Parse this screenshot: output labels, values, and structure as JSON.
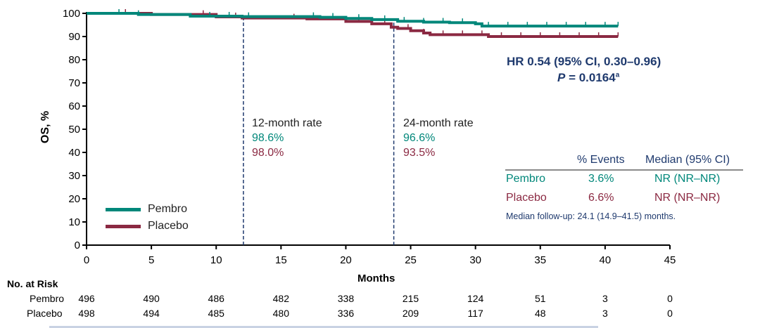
{
  "chart_data": {
    "type": "line",
    "subtype": "kaplan-meier",
    "ylabel": "OS, %",
    "xlabel": "Months",
    "xlim": [
      0,
      45
    ],
    "ylim": [
      0,
      100
    ],
    "xticks": [
      0,
      5,
      10,
      15,
      20,
      25,
      30,
      35,
      40,
      45
    ],
    "yticks": [
      0,
      10,
      20,
      30,
      40,
      50,
      60,
      70,
      80,
      90,
      100
    ],
    "grid": false,
    "legend_position": "bottom-left",
    "colors": {
      "pembro": "#00877a",
      "placebo": "#8b2942",
      "annotation": "#1f3a6e"
    },
    "series": [
      {
        "name": "Pembro",
        "color": "#00877a",
        "x": [
          0,
          4,
          8,
          12,
          15,
          18,
          20,
          22,
          24,
          26,
          28,
          30,
          30.5,
          41
        ],
        "y": [
          100,
          99.5,
          98.8,
          98.6,
          98.6,
          98.3,
          97.8,
          97.3,
          96.6,
          96.2,
          96.0,
          95.5,
          94.5,
          94.5
        ],
        "censor_x": [
          2.5,
          4,
          9.5,
          11,
          12.5,
          17.5,
          19,
          21,
          23,
          24.5,
          26,
          27.5,
          29,
          31,
          32.5,
          34,
          35.5,
          37,
          38.5,
          40,
          41
        ]
      },
      {
        "name": "Placebo",
        "color": "#8b2942",
        "x": [
          0,
          5,
          10,
          12,
          17,
          20,
          22,
          23.5,
          24,
          25,
          26,
          26.5,
          30,
          31,
          41
        ],
        "y": [
          100,
          99.5,
          98.5,
          98.0,
          97.6,
          96.5,
          95.5,
          94.0,
          93.5,
          92.5,
          91.5,
          90.8,
          90.8,
          90.0,
          90.0
        ],
        "censor_x": [
          3,
          9,
          11.5,
          16,
          21,
          23,
          24.8,
          26,
          27.5,
          29,
          30.5,
          32,
          33.5,
          35,
          36.5,
          38,
          39.5,
          41
        ]
      }
    ],
    "landmarks": [
      {
        "month": 12,
        "label": "12-month rate",
        "pembro": "98.6%",
        "placebo": "98.0%"
      },
      {
        "month": 24,
        "label": "24-month rate",
        "pembro": "96.6%",
        "placebo": "93.5%"
      }
    ],
    "hr_text": "HR 0.54 (95% CI, 0.30–0.96)",
    "p_label": "P",
    "p_value": " = 0.0164",
    "p_sup": "a",
    "summary_table": {
      "headers": [
        "",
        "% Events",
        "Median (95% CI)"
      ],
      "rows": [
        {
          "arm": "Pembro",
          "events": "3.6%",
          "median": "NR (NR–NR)"
        },
        {
          "arm": "Placebo",
          "events": "6.6%",
          "median": "NR (NR–NR)"
        }
      ],
      "footnote": "Median follow-up: 24.1 (14.9–41.5) months."
    },
    "risk_table": {
      "title": "No. at Risk",
      "rows": [
        {
          "arm": "Pembro",
          "values": [
            496,
            490,
            486,
            482,
            338,
            215,
            124,
            51,
            3,
            0
          ]
        },
        {
          "arm": "Placebo",
          "values": [
            498,
            494,
            485,
            480,
            336,
            209,
            117,
            48,
            3,
            0
          ]
        }
      ]
    }
  }
}
